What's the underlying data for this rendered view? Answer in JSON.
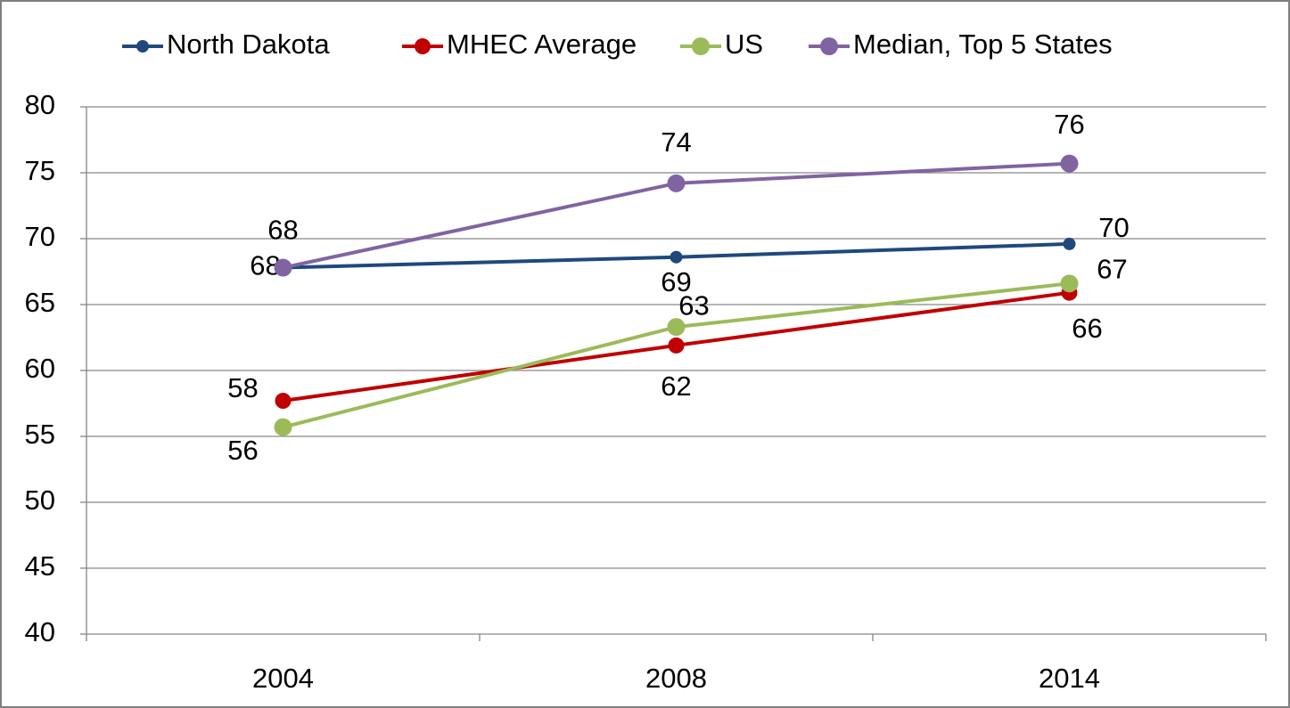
{
  "chart_data": {
    "type": "line",
    "categories": [
      "2004",
      "2008",
      "2014"
    ],
    "series": [
      {
        "name": "North Dakota",
        "color": "#1f497d",
        "values": [
          67.8,
          68.6,
          69.6
        ],
        "value_labels": [
          "68",
          "69",
          "70"
        ]
      },
      {
        "name": "MHEC Average",
        "color": "#c00000",
        "values": [
          57.7,
          61.9,
          65.9
        ],
        "value_labels": [
          "58",
          "62",
          "66"
        ]
      },
      {
        "name": "US",
        "color": "#9bbb59",
        "values": [
          55.7,
          63.3,
          66.6
        ],
        "value_labels": [
          "56",
          "63",
          "67"
        ]
      },
      {
        "name": "Median, Top 5 States",
        "color": "#8064a2",
        "values": [
          67.8,
          74.2,
          75.7
        ],
        "value_labels": [
          "68",
          "74",
          "76"
        ]
      }
    ],
    "ylim": [
      40,
      80
    ],
    "yticks": [
      40,
      45,
      50,
      55,
      60,
      65,
      70,
      75,
      80
    ],
    "grid": true,
    "legend": "top"
  }
}
